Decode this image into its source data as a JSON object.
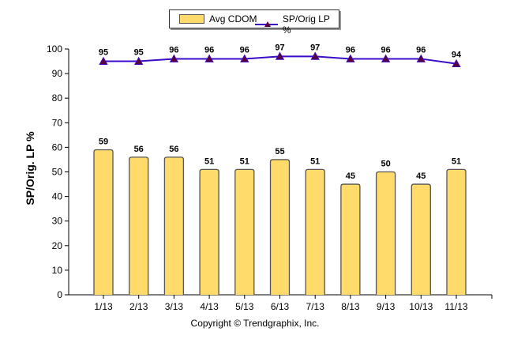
{
  "legend": {
    "series1_label": "Avg CDOM",
    "series2_label": "SP/Orig LP %"
  },
  "axis": {
    "ylabel": "SP/Orig. LP %",
    "yticks": [
      0,
      10,
      20,
      30,
      40,
      50,
      60,
      70,
      80,
      90,
      100
    ]
  },
  "copyright": "Copyright © Trendgraphix, Inc.",
  "colors": {
    "bar_fill": "#FFDB6B",
    "bar_stroke": "#555555",
    "line": "#3A0BC8",
    "marker": "#5A0040"
  },
  "chart_data": {
    "type": "bar",
    "title": "",
    "xlabel": "",
    "ylabel": "SP/Orig. LP %",
    "ylim": [
      0,
      100
    ],
    "grid": false,
    "legend_position": "top",
    "categories": [
      "1/13",
      "2/13",
      "3/13",
      "4/13",
      "5/13",
      "6/13",
      "7/13",
      "8/13",
      "9/13",
      "10/13",
      "11/13"
    ],
    "series": [
      {
        "name": "Avg CDOM",
        "type": "bar",
        "values": [
          59,
          56,
          56,
          51,
          51,
          55,
          51,
          45,
          50,
          45,
          51
        ]
      },
      {
        "name": "SP/Orig LP %",
        "type": "line",
        "values": [
          95,
          95,
          96,
          96,
          96,
          97,
          97,
          96,
          96,
          96,
          94
        ]
      }
    ]
  }
}
